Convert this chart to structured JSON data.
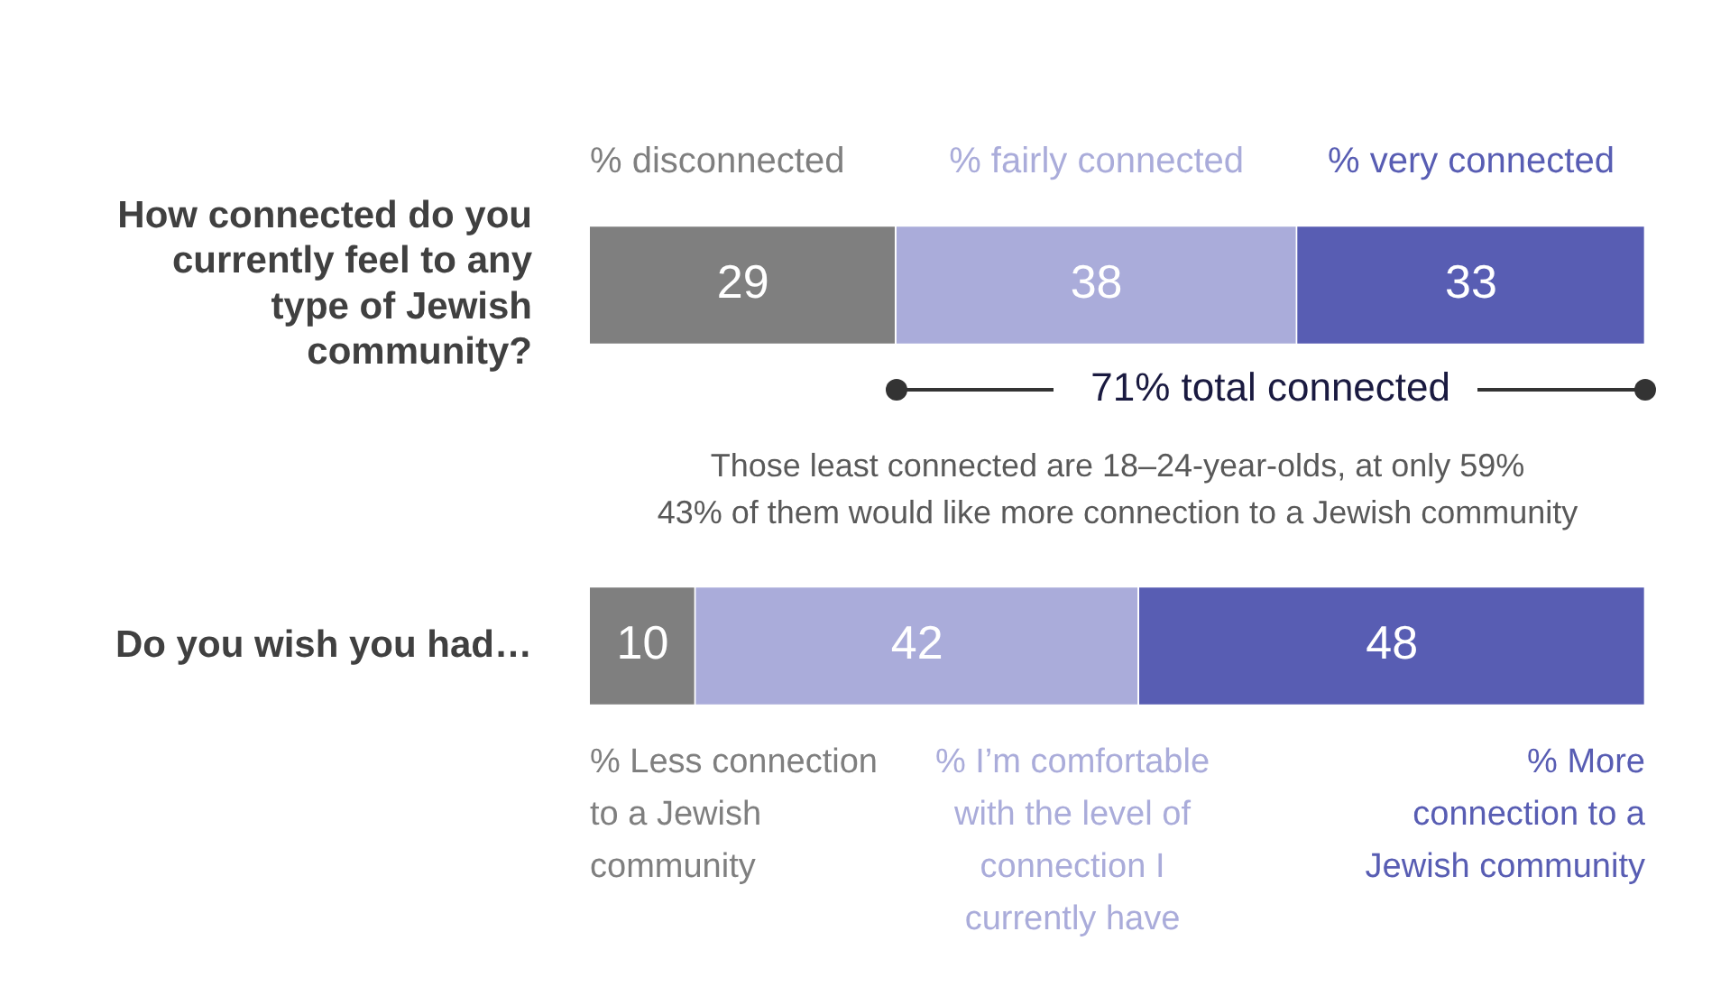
{
  "chart_data": {
    "type": "bar",
    "orientation": "horizontal",
    "stacked": true,
    "categories": [
      "How connected do you currently feel to any type of Jewish community?",
      "Do you wish you had…"
    ],
    "series": [
      {
        "color": "#7f7f7f",
        "values": [
          29,
          10
        ]
      },
      {
        "color": "#aaacda",
        "values": [
          38,
          42
        ]
      },
      {
        "color": "#585db3",
        "values": [
          33,
          48
        ]
      }
    ],
    "xlim": [
      0,
      100
    ],
    "tick_labels": "y",
    "data_labels": true,
    "legend": false,
    "grid": false,
    "annotations": [
      "% disconnected",
      "% fairly connected",
      "% very connected",
      "71% total connected",
      "Those least connected are 18–24-year-olds, at only 59%",
      "43% of them would like more connection to a Jewish community",
      "% Less connection to a Jewish community",
      "% I’m comfortable with the level of connection I currently have",
      "% More connection to a Jewish community"
    ]
  }
}
